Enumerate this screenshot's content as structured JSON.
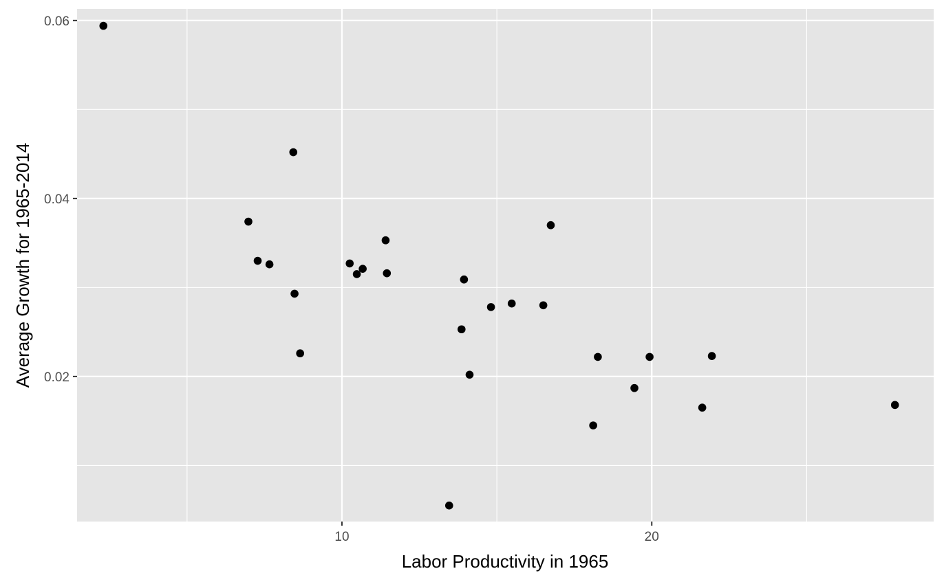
{
  "chart_data": {
    "type": "scatter",
    "title": "",
    "xlabel": "Labor Productivity in 1965",
    "ylabel": "Average Growth for 1965-2014",
    "xlim": [
      1.45,
      29.1
    ],
    "ylim": [
      0.0037,
      0.0613
    ],
    "x_ticks": [
      10,
      20
    ],
    "x_tick_labels": [
      "10",
      "20"
    ],
    "x_minor_ticks": [
      5,
      15,
      25
    ],
    "y_ticks": [
      0.02,
      0.04,
      0.06
    ],
    "y_tick_labels": [
      "0.02",
      "0.04",
      "0.06"
    ],
    "y_minor_ticks": [
      0.01,
      0.03,
      0.05
    ],
    "grid": true,
    "panel_color": "#e5e5e5",
    "grid_color": "#ffffff",
    "point_color": "#000000",
    "points": [
      {
        "x": 2.3,
        "y": 0.0594
      },
      {
        "x": 6.98,
        "y": 0.0374
      },
      {
        "x": 7.28,
        "y": 0.033
      },
      {
        "x": 7.66,
        "y": 0.0326
      },
      {
        "x": 8.43,
        "y": 0.0452
      },
      {
        "x": 8.47,
        "y": 0.0293
      },
      {
        "x": 8.65,
        "y": 0.0226
      },
      {
        "x": 10.25,
        "y": 0.0327
      },
      {
        "x": 10.48,
        "y": 0.0315
      },
      {
        "x": 10.67,
        "y": 0.0321
      },
      {
        "x": 11.41,
        "y": 0.0353
      },
      {
        "x": 11.45,
        "y": 0.0316
      },
      {
        "x": 13.46,
        "y": 0.0055
      },
      {
        "x": 13.86,
        "y": 0.0253
      },
      {
        "x": 13.94,
        "y": 0.0309
      },
      {
        "x": 14.12,
        "y": 0.0202
      },
      {
        "x": 14.81,
        "y": 0.0278
      },
      {
        "x": 15.48,
        "y": 0.0282
      },
      {
        "x": 16.5,
        "y": 0.028
      },
      {
        "x": 16.74,
        "y": 0.037
      },
      {
        "x": 18.11,
        "y": 0.0145
      },
      {
        "x": 18.26,
        "y": 0.0222
      },
      {
        "x": 19.44,
        "y": 0.0187
      },
      {
        "x": 19.93,
        "y": 0.0222
      },
      {
        "x": 21.63,
        "y": 0.0165
      },
      {
        "x": 21.94,
        "y": 0.0223
      },
      {
        "x": 27.85,
        "y": 0.0168
      }
    ]
  }
}
